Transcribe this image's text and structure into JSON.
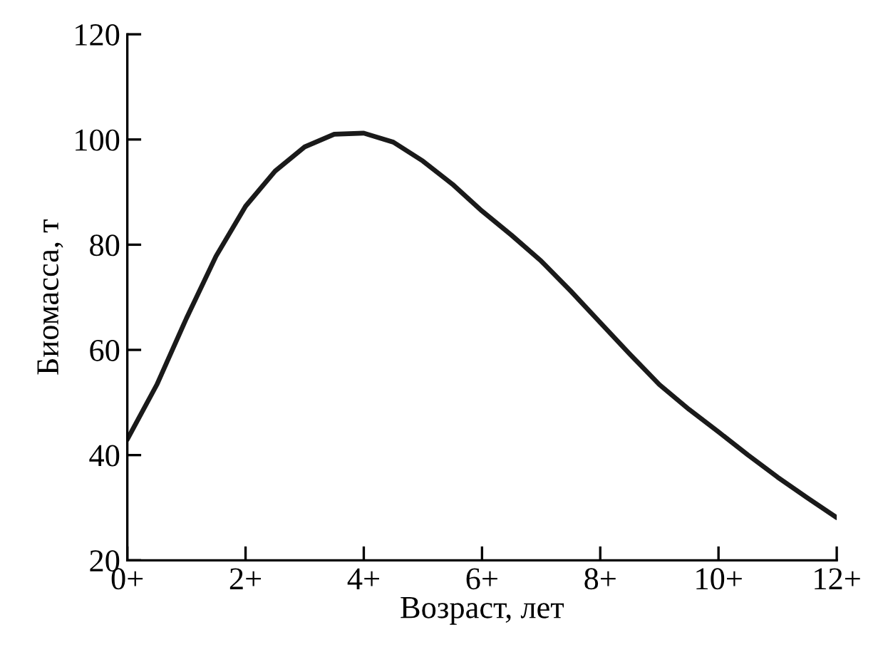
{
  "chart_data": {
    "type": "line",
    "xlabel": "Возраст, лет",
    "ylabel": "Биомасса, т",
    "categories": [
      "0+",
      null,
      null,
      null,
      "2+",
      null,
      null,
      null,
      "4+",
      null,
      null,
      null,
      "6+",
      null,
      null,
      null,
      "8+",
      null,
      null,
      null,
      "10+",
      null,
      null,
      null,
      "12+"
    ],
    "series": [
      {
        "color": "#1a1a1a",
        "values": [
          43,
          53.4,
          66,
          77.8,
          87.3,
          94,
          98.6,
          101,
          101.2,
          99.5,
          95.9,
          91.5,
          86.4,
          81.8,
          76.9,
          71.2,
          65.2,
          59.2,
          53.4,
          48.7,
          44.4,
          40,
          35.8,
          31.9,
          28.1
        ]
      }
    ],
    "ylim": [
      20,
      120
    ],
    "yticks": [
      20,
      40,
      60,
      80,
      100,
      120
    ],
    "grid": false,
    "marker": "none",
    "line_style": "solid"
  }
}
